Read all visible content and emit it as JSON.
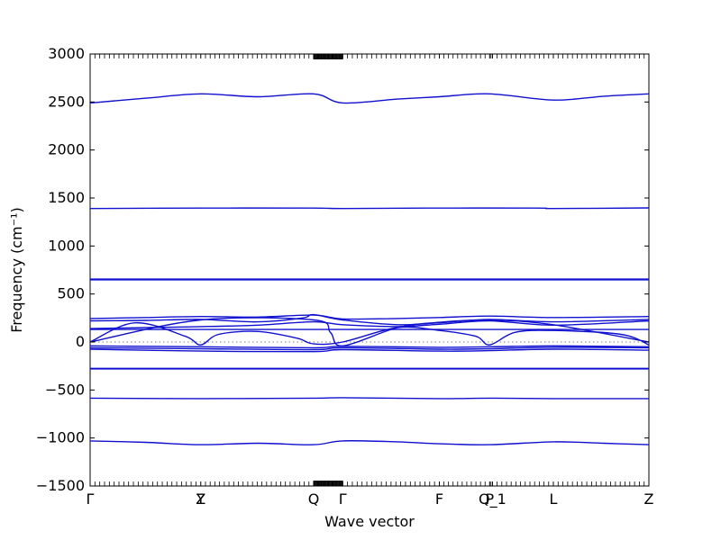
{
  "chart_data": {
    "type": "line",
    "title": "",
    "xlabel": "Wave vector",
    "ylabel": "Frequency (cm⁻¹)",
    "ylim": [
      -1500,
      3000
    ],
    "yticks": [
      -1500,
      -1000,
      -500,
      0,
      500,
      1000,
      1500,
      2000,
      2500,
      3000
    ],
    "xlim": [
      0,
      1
    ],
    "high_symmetry_points": [
      {
        "label": "Γ",
        "x": 0.0
      },
      {
        "label": "Y",
        "x": 0.198
      },
      {
        "label": "Z",
        "x": 0.198
      },
      {
        "label": "Q",
        "x": 0.4
      },
      {
        "label": "Γ",
        "x": 0.452
      },
      {
        "label": "F",
        "x": 0.625
      },
      {
        "label": "P",
        "x": 0.715
      },
      {
        "label": "Q_1",
        "x": 0.72
      },
      {
        "label": "L",
        "x": 0.829
      },
      {
        "label": "Z",
        "x": 1.0
      }
    ],
    "zero_line": true,
    "grid": false,
    "line_color": "#1010d0",
    "series": [
      {
        "x": [
          0,
          0.1,
          0.198,
          0.3,
          0.4,
          0.452,
          0.55,
          0.625,
          0.715,
          0.829,
          0.92,
          1.0
        ],
        "values": [
          2490,
          2540,
          2585,
          2555,
          2585,
          2490,
          2530,
          2555,
          2585,
          2520,
          2560,
          2585
        ]
      },
      {
        "x": [
          0,
          0.2,
          0.4,
          0.452,
          0.6,
          0.8,
          0.829,
          1.0
        ],
        "values": [
          1390,
          1395,
          1395,
          1390,
          1395,
          1395,
          1390,
          1397
        ]
      },
      {
        "x": [
          0,
          1.0
        ],
        "values": [
          655,
          655
        ]
      },
      {
        "x": [
          0,
          1.0
        ],
        "values": [
          648,
          648
        ]
      },
      {
        "x": [
          0,
          0.1,
          0.198,
          0.3,
          0.4,
          0.452,
          0.55,
          0.625,
          0.715,
          0.829,
          1.0
        ],
        "values": [
          245,
          255,
          265,
          260,
          280,
          240,
          245,
          255,
          270,
          255,
          265
        ]
      },
      {
        "x": [
          0,
          0.1,
          0.198,
          0.3,
          0.38,
          0.4,
          0.452,
          0.55,
          0.625,
          0.715,
          0.829,
          1.0
        ],
        "values": [
          220,
          225,
          235,
          210,
          250,
          285,
          230,
          180,
          200,
          235,
          210,
          235
        ]
      },
      {
        "x": [
          0,
          0.1,
          0.198,
          0.3,
          0.4,
          0.452,
          0.55,
          0.625,
          0.715,
          0.829,
          1.0
        ],
        "values": [
          140,
          150,
          160,
          175,
          210,
          180,
          160,
          185,
          220,
          175,
          220
        ]
      },
      {
        "x": [
          0,
          0.08,
          0.198,
          0.3,
          0.4,
          0.452,
          0.55,
          0.625,
          0.715,
          0.829,
          1.0
        ],
        "values": [
          130,
          130,
          130,
          130,
          130,
          130,
          130,
          130,
          130,
          130,
          130
        ]
      },
      {
        "x": [
          0,
          0.08,
          0.17,
          0.198,
          0.23,
          0.3,
          0.37,
          0.4,
          0.452,
          0.55,
          0.625,
          0.69,
          0.715,
          0.76,
          0.829,
          0.95,
          1.0
        ],
        "values": [
          0,
          200,
          60,
          -30,
          80,
          110,
          40,
          -20,
          0,
          150,
          120,
          60,
          -30,
          100,
          120,
          80,
          -30
        ]
      },
      {
        "x": [
          0,
          0.198,
          0.4,
          0.43,
          0.452,
          0.55,
          0.625,
          0.715,
          0.829,
          1.0
        ],
        "values": [
          0,
          230,
          230,
          100,
          -40,
          150,
          205,
          230,
          180,
          0
        ]
      },
      {
        "x": [
          0,
          0.198,
          0.4,
          0.452,
          0.625,
          0.715,
          0.829,
          1.0
        ],
        "values": [
          -40,
          -50,
          -60,
          -45,
          -55,
          -50,
          -40,
          -50
        ]
      },
      {
        "x": [
          0,
          0.198,
          0.4,
          0.452,
          0.625,
          0.715,
          0.829,
          1.0
        ],
        "values": [
          -60,
          -70,
          -80,
          -60,
          -75,
          -70,
          -55,
          -60
        ]
      },
      {
        "x": [
          0,
          0.198,
          0.4,
          0.452,
          0.625,
          0.715,
          0.829,
          1.0
        ],
        "values": [
          -75,
          -95,
          -100,
          -80,
          -95,
          -90,
          -75,
          -85
        ]
      },
      {
        "x": [
          0,
          1.0
        ],
        "values": [
          -280,
          -280
        ]
      },
      {
        "x": [
          0,
          1.0
        ],
        "values": [
          -275,
          -275
        ]
      },
      {
        "x": [
          0,
          0.198,
          0.4,
          0.452,
          0.625,
          0.715,
          0.829,
          1.0
        ],
        "values": [
          -585,
          -590,
          -585,
          -580,
          -590,
          -585,
          -590,
          -590
        ]
      },
      {
        "x": [
          0,
          0.1,
          0.198,
          0.3,
          0.4,
          0.452,
          0.55,
          0.625,
          0.715,
          0.829,
          0.92,
          1.0
        ],
        "values": [
          -1030,
          -1045,
          -1070,
          -1055,
          -1070,
          -1030,
          -1040,
          -1060,
          -1070,
          -1040,
          -1055,
          -1070
        ]
      }
    ]
  }
}
